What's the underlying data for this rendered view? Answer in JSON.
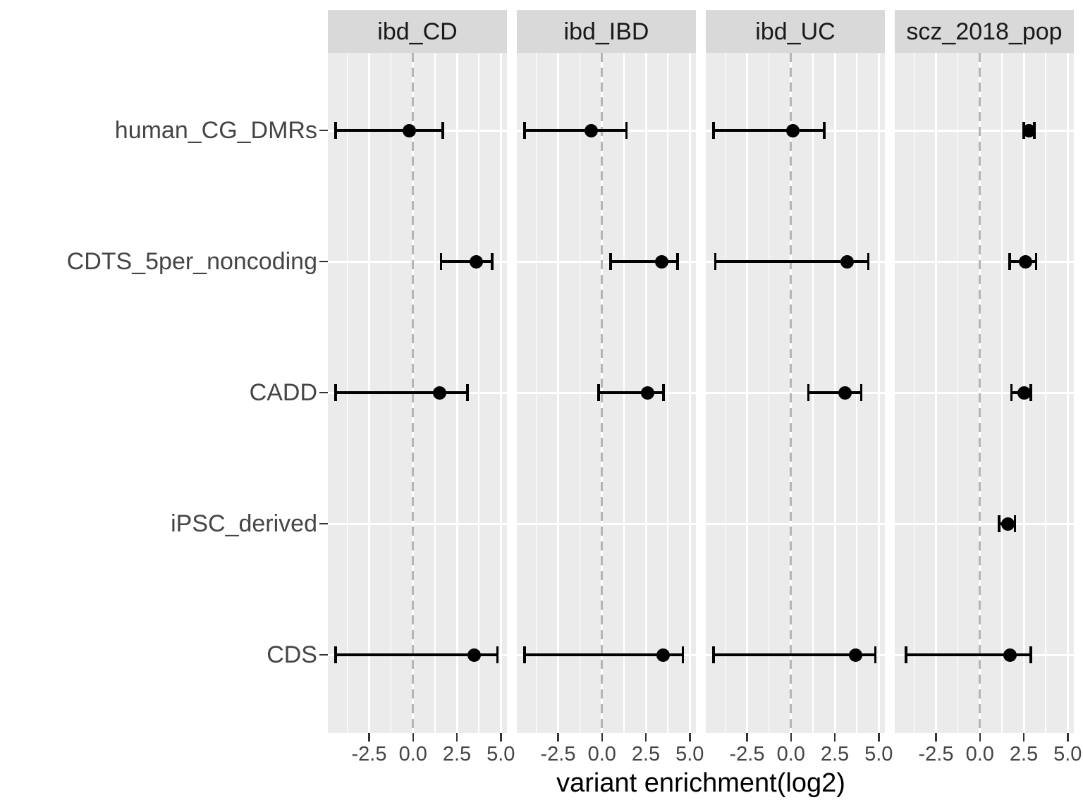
{
  "chart_data": {
    "type": "scatter",
    "subtype": "faceted-forest-plot-with-error-bars",
    "facets": [
      "ibd_CD",
      "ibd_IBD",
      "ibd_UC",
      "scz_2018_pop"
    ],
    "categories": [
      "human_CG_DMRs",
      "CDTS_5per_noncoding",
      "CADD",
      "iPSC_derived",
      "CDS"
    ],
    "xlabel": "variant enrichment(log2)",
    "x_ticks": [
      -2.5,
      0.0,
      2.5,
      5.0
    ],
    "x_tick_labels": [
      "-2.5",
      "0.0",
      "2.5",
      "5.0"
    ],
    "x_minor_ticks": [
      -3.75,
      -1.25,
      1.25,
      3.75
    ],
    "xlim": [
      -4.85,
      5.35
    ],
    "reference_line_x": 0,
    "grid": "on",
    "legend": "none",
    "series": [
      {
        "facet": "ibd_CD",
        "est": [
          -0.2,
          3.6,
          1.5,
          null,
          3.5
        ],
        "lo": [
          -4.4,
          1.6,
          -4.4,
          null,
          -4.4
        ],
        "hi": [
          1.7,
          4.5,
          3.1,
          null,
          4.8
        ]
      },
      {
        "facet": "ibd_IBD",
        "est": [
          -0.6,
          3.4,
          2.6,
          null,
          3.5
        ],
        "lo": [
          -4.4,
          0.5,
          -0.2,
          null,
          -4.4
        ],
        "hi": [
          1.4,
          4.3,
          3.5,
          null,
          4.6
        ]
      },
      {
        "facet": "ibd_UC",
        "est": [
          0.1,
          3.2,
          3.1,
          null,
          3.7
        ],
        "lo": [
          -4.4,
          -4.3,
          1.0,
          null,
          -4.4
        ],
        "hi": [
          1.9,
          4.4,
          4.0,
          null,
          4.8
        ]
      },
      {
        "facet": "scz_2018_pop",
        "est": [
          2.8,
          2.6,
          2.5,
          1.6,
          1.7
        ],
        "lo": [
          2.5,
          1.7,
          1.8,
          1.1,
          -4.2
        ],
        "hi": [
          3.1,
          3.2,
          2.9,
          2.0,
          2.9
        ]
      }
    ],
    "colors": {
      "panel_bg": "#EBEBEB",
      "strip_bg": "#D9D9D9",
      "gridline": "#FFFFFF",
      "reference_line": "#B5B5B5",
      "data": "#000000",
      "axis_text": "#454545",
      "strip_text": "#1A1A1A",
      "axis_title": "#000000"
    }
  }
}
